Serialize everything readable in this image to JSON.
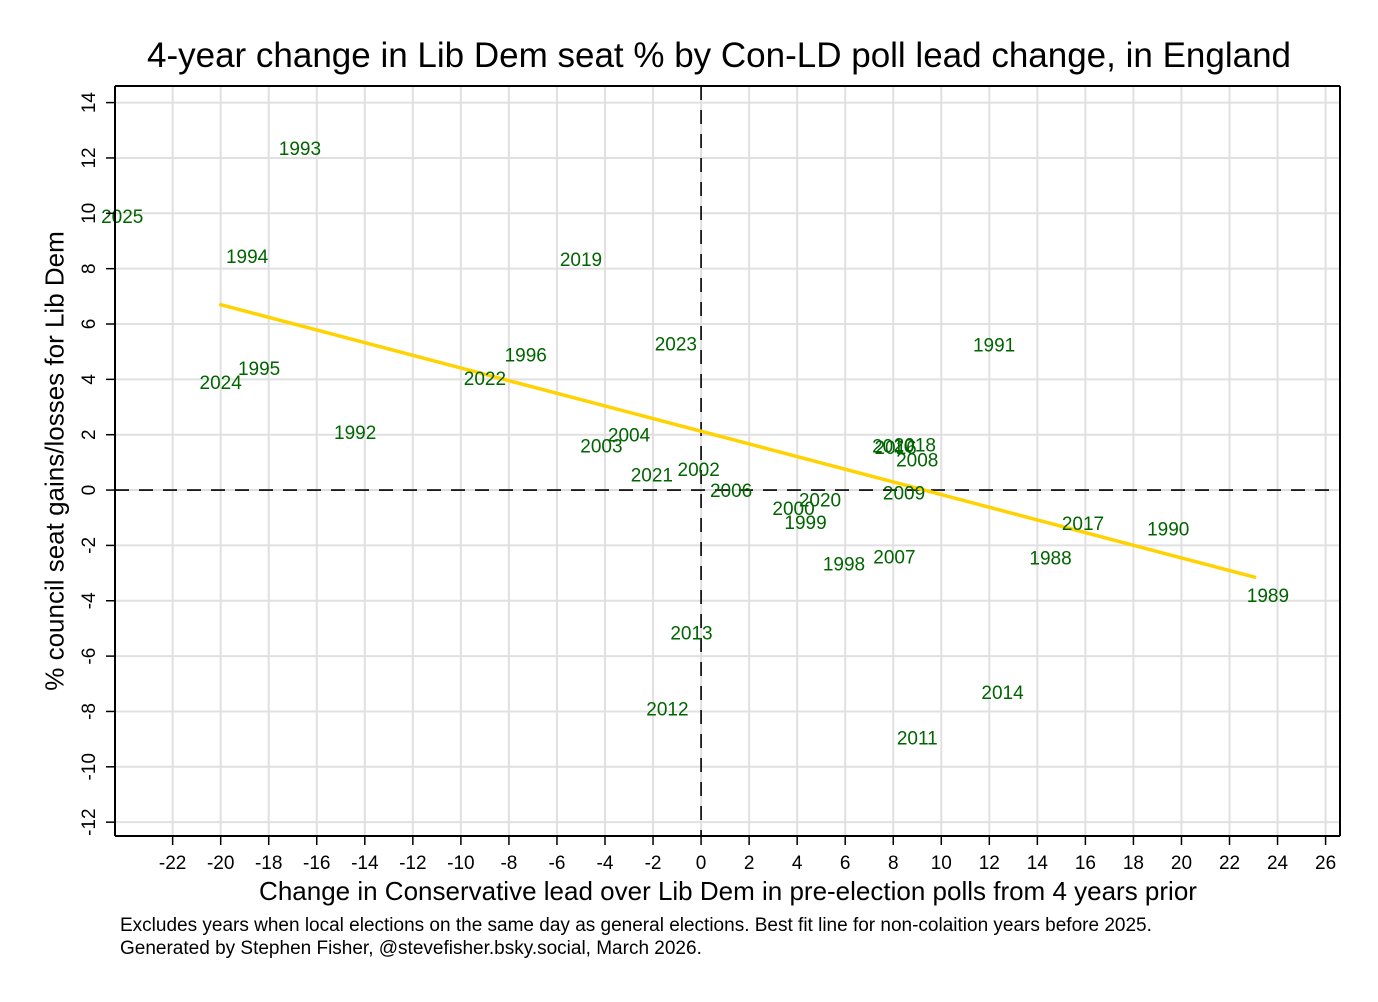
{
  "chart_data": {
    "type": "scatter",
    "title": "4-year change in Lib Dem seat % by Con-LD poll lead change, in England",
    "xlabel": "Change in Conservative lead over Lib Dem in pre-election polls from 4 years prior",
    "ylabel": "% council seat gains/losses for Lib Dem",
    "xlim": [
      -24.4,
      26.6
    ],
    "ylim": [
      -12.5,
      14.6
    ],
    "xticks": [
      -22,
      -20,
      -18,
      -16,
      -14,
      -12,
      -10,
      -8,
      -6,
      -4,
      -2,
      0,
      2,
      4,
      6,
      8,
      10,
      12,
      14,
      16,
      18,
      20,
      22,
      24,
      26
    ],
    "yticks": [
      -12,
      -10,
      -8,
      -6,
      -4,
      -2,
      0,
      2,
      4,
      6,
      8,
      10,
      12,
      14
    ],
    "grid": true,
    "reference_lines": {
      "x": 0,
      "y": 0,
      "style": "dashed"
    },
    "marker_color": "#006400",
    "fit_color": "#ffd200",
    "points": [
      {
        "label": "1988",
        "x": 14.55,
        "y": -2.5
      },
      {
        "label": "1989",
        "x": 23.6,
        "y": -3.85
      },
      {
        "label": "1990",
        "x": 19.45,
        "y": -1.45
      },
      {
        "label": "1991",
        "x": 12.2,
        "y": 5.2
      },
      {
        "label": "1992",
        "x": -14.4,
        "y": 2.05
      },
      {
        "label": "1993",
        "x": -16.7,
        "y": 12.3
      },
      {
        "label": "1994",
        "x": -18.9,
        "y": 8.4
      },
      {
        "label": "1995",
        "x": -18.4,
        "y": 4.35
      },
      {
        "label": "1996",
        "x": -7.3,
        "y": 4.85
      },
      {
        "label": "1998",
        "x": 5.95,
        "y": -2.7
      },
      {
        "label": "1999",
        "x": 4.35,
        "y": -1.2
      },
      {
        "label": "2000",
        "x": 3.85,
        "y": -0.7
      },
      {
        "label": "2002",
        "x": -0.1,
        "y": 0.7
      },
      {
        "label": "2003",
        "x": -4.15,
        "y": 1.55
      },
      {
        "label": "2004",
        "x": -3.0,
        "y": 1.95
      },
      {
        "label": "2006",
        "x": 1.25,
        "y": -0.05
      },
      {
        "label": "2007",
        "x": 8.05,
        "y": -2.45
      },
      {
        "label": "2008",
        "x": 9.0,
        "y": 1.05
      },
      {
        "label": "2009",
        "x": 8.45,
        "y": -0.15
      },
      {
        "label": "2010",
        "x": 8.0,
        "y": 1.55
      },
      {
        "label": "2011",
        "x": 9.0,
        "y": -9.0
      },
      {
        "label": "2012",
        "x": -1.4,
        "y": -7.95
      },
      {
        "label": "2013",
        "x": -0.4,
        "y": -5.2
      },
      {
        "label": "2014",
        "x": 12.55,
        "y": -7.35
      },
      {
        "label": "2016",
        "x": 8.1,
        "y": 1.5
      },
      {
        "label": "2017",
        "x": 15.9,
        "y": -1.25
      },
      {
        "label": "2018",
        "x": 8.9,
        "y": 1.6
      },
      {
        "label": "2019",
        "x": -5.0,
        "y": 8.3
      },
      {
        "label": "2020",
        "x": 4.95,
        "y": -0.4
      },
      {
        "label": "2021",
        "x": -2.05,
        "y": 0.5
      },
      {
        "label": "2022",
        "x": -9.0,
        "y": 4.0
      },
      {
        "label": "2023",
        "x": -1.05,
        "y": 5.25
      },
      {
        "label": "2024",
        "x": -20.0,
        "y": 3.85
      },
      {
        "label": "2025",
        "x": -24.1,
        "y": 9.85
      }
    ],
    "fit_line": {
      "x": [
        -20.0,
        23.05
      ],
      "y": [
        6.7,
        -3.15
      ]
    },
    "notes": [
      "Excludes years when local elections on the same day as general elections. Best fit line for non-colaition years before 2025.",
      "Generated by Stephen Fisher, @stevefisher.bsky.social, March 2026."
    ]
  }
}
